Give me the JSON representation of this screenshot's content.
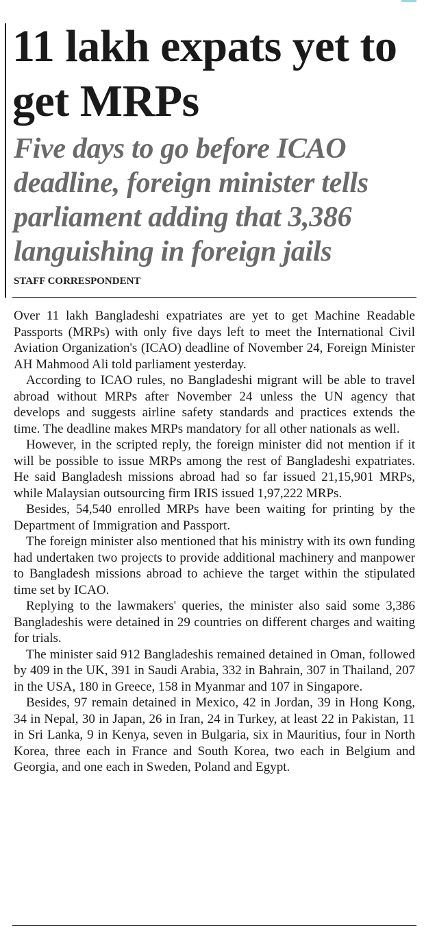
{
  "article": {
    "headline": "11 lakh expats yet to get MRPs",
    "subheadline": "Five days to go before ICAO deadline, foreign minister tells parliament adding that 3,386 languishing in foreign jails",
    "byline": "STAFF CORRESPONDENT",
    "paragraphs": [
      "Over 11 lakh Bangladeshi expatriates are yet to get Machine Readable Passports (MRPs) with only five days left to meet the International Civil Aviation Organization's (ICAO) deadline of November 24, Foreign Minister AH Mahmood Ali told parliament yesterday.",
      "According to ICAO rules, no Bangladeshi migrant will be able to travel abroad without MRPs after November 24 unless the UN agency that develops and suggests airline safety standards and practices extends the time. The deadline makes MRPs mandatory for all other nationals as well.",
      "However, in the scripted reply, the foreign minister did not mention if it will be possible to issue MRPs among the rest of Bangladeshi expatriates. He said Bangladesh missions abroad had so far issued 21,15,901 MRPs, while Malaysian outsourcing firm IRIS issued 1,97,222 MRPs.",
      "Besides, 54,540 enrolled MRPs have been waiting for printing by the Department of Immigration and Passport.",
      "The foreign minister also mentioned that his ministry with its own funding had undertaken two projects to provide additional machinery and manpower to Bangladesh missions abroad to achieve the target within the stipulated time set by ICAO.",
      "Replying to the lawmakers' queries, the minister also said some 3,386 Bangladeshis were detained in 29 countries on different charges and waiting for trials.",
      "The minister said 912 Bangladeshis remained detained in Oman, followed by 409 in the UK, 391 in Saudi Arabia, 332 in Bahrain, 307 in Thailand, 207 in the USA, 180 in Greece, 158 in Myanmar and 107 in Singapore.",
      "Besides, 97 remain detained in Mexico, 42 in Jordan, 39 in Hong Kong, 34 in Nepal, 30 in Japan, 26 in Iran, 24 in Turkey, at least 22 in Pakistan, 11 in Sri Lanka, 9 in Kenya, seven in Bulgaria, six in Mauritius, four in North Korea, three each in France and South Korea, two each in Belgium and Georgia, and one each in Sweden, Poland and Egypt."
    ]
  }
}
